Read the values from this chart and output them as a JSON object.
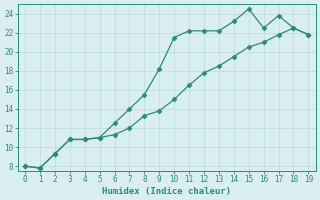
{
  "xlabel": "Humidex (Indice chaleur)",
  "line1_x": [
    0,
    1,
    2,
    3,
    4,
    5,
    6,
    7,
    8,
    9,
    10,
    11,
    12,
    13,
    14,
    15,
    16,
    17,
    18,
    19
  ],
  "line1_y": [
    8.0,
    7.8,
    9.3,
    10.8,
    10.8,
    11.0,
    12.5,
    14.0,
    15.5,
    18.2,
    21.5,
    22.2,
    22.2,
    22.2,
    23.2,
    24.5,
    22.5,
    23.8,
    22.5,
    21.8
  ],
  "line2_x": [
    0,
    1,
    2,
    3,
    4,
    5,
    6,
    7,
    8,
    9,
    10,
    11,
    12,
    13,
    14,
    15,
    16,
    17,
    18,
    19
  ],
  "line2_y": [
    8.0,
    7.8,
    9.3,
    10.8,
    10.8,
    11.0,
    11.3,
    12.0,
    13.3,
    13.8,
    15.0,
    16.5,
    17.8,
    18.5,
    19.5,
    20.5,
    21.0,
    21.8,
    22.5,
    21.8
  ],
  "line_color": "#2d8b72",
  "marker": "D",
  "marker_size": 2.5,
  "xlim": [
    -0.5,
    19.5
  ],
  "ylim": [
    7.5,
    25.0
  ],
  "yticks": [
    8,
    10,
    12,
    14,
    16,
    18,
    20,
    22,
    24
  ],
  "xticks": [
    0,
    1,
    2,
    3,
    4,
    5,
    6,
    7,
    8,
    9,
    10,
    11,
    12,
    13,
    14,
    15,
    16,
    17,
    18,
    19
  ],
  "bg_color": "#d9eeee",
  "grid_color": "#c0dede",
  "fig_bg": "#d9eeee",
  "tick_fontsize": 5.5,
  "xlabel_fontsize": 6.5,
  "linewidth": 0.9
}
